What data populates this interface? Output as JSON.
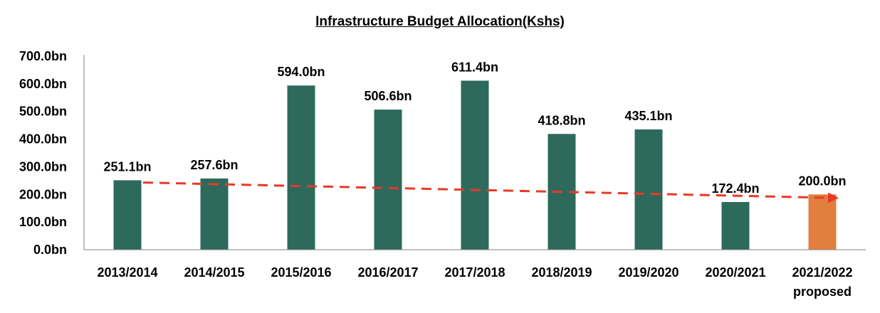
{
  "chart_data": {
    "type": "bar",
    "title": "Infrastructure Budget Allocation(Kshs)",
    "xlabel": "",
    "ylabel": "",
    "categories": [
      "2013/2014",
      "2014/2015",
      "2015/2016",
      "2016/2017",
      "2017/2018",
      "2018/2019",
      "2019/2020",
      "2020/2021",
      "2021/2022 proposed"
    ],
    "category_lines": [
      [
        "2013/2014"
      ],
      [
        "2014/2015"
      ],
      [
        "2015/2016"
      ],
      [
        "2016/2017"
      ],
      [
        "2017/2018"
      ],
      [
        "2018/2019"
      ],
      [
        "2019/2020"
      ],
      [
        "2020/2021"
      ],
      [
        "2021/2022",
        "proposed"
      ]
    ],
    "values": [
      251.1,
      257.6,
      594.0,
      506.6,
      611.4,
      418.8,
      435.1,
      172.4,
      200.0
    ],
    "data_labels": [
      "251.1bn",
      "257.6bn",
      "594.0bn",
      "506.6bn",
      "611.4bn",
      "418.8bn",
      "435.1bn",
      "172.4bn",
      "200.0bn"
    ],
    "ylim": [
      0,
      700
    ],
    "yticks": [
      0,
      100,
      200,
      300,
      400,
      500,
      600,
      700
    ],
    "ytick_labels": [
      "0.0bn",
      "100.0bn",
      "200.0bn",
      "300.0bn",
      "400.0bn",
      "500.0bn",
      "600.0bn",
      "700.0bn"
    ],
    "bar_colors": [
      "#2d6a5c",
      "#2d6a5c",
      "#2d6a5c",
      "#2d6a5c",
      "#2d6a5c",
      "#2d6a5c",
      "#2d6a5c",
      "#2d6a5c",
      "#e07f3e"
    ],
    "trendline": {
      "style": "dashed",
      "color": "#e8392a",
      "start_value": 243,
      "end_value": 187,
      "arrow": true
    },
    "grid": false,
    "legend": "none"
  }
}
